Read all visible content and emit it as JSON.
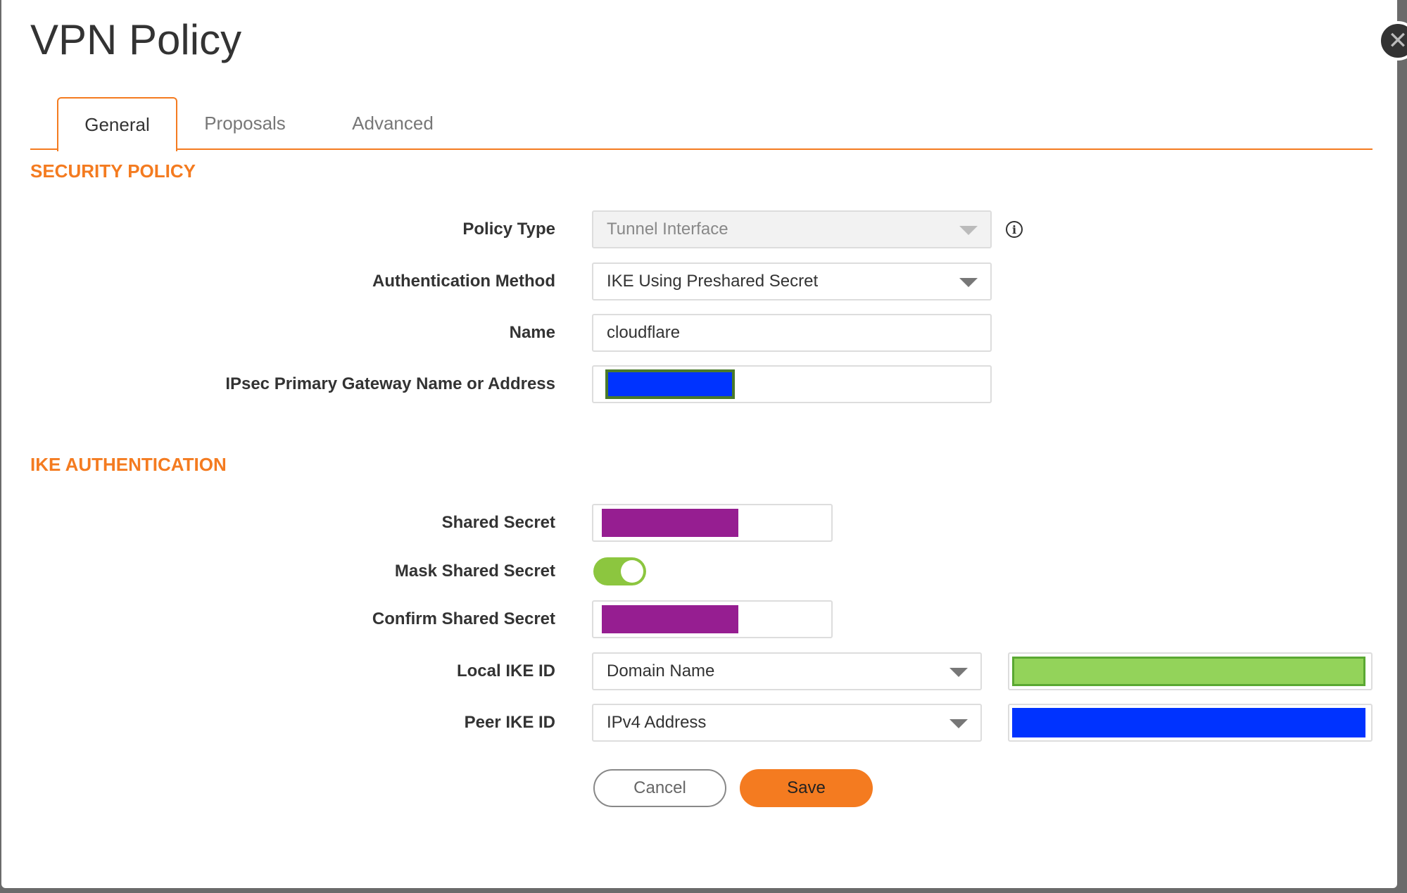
{
  "title": "VPN Policy",
  "tabs": [
    {
      "label": "General",
      "active": true
    },
    {
      "label": "Proposals"
    },
    {
      "label": "Advanced"
    }
  ],
  "security_policy": {
    "heading": "SECURITY POLICY",
    "policy_type": {
      "label": "Policy Type",
      "value": "Tunnel Interface",
      "disabled": true
    },
    "auth_method": {
      "label": "Authentication Method",
      "value": "IKE Using Preshared Secret"
    },
    "name": {
      "label": "Name",
      "value": "cloudflare"
    },
    "gateway": {
      "label": "IPsec Primary Gateway Name or Address",
      "redaction_color": "#0033ff"
    }
  },
  "ike_auth": {
    "heading": "IKE AUTHENTICATION",
    "shared_secret": {
      "label": "Shared Secret",
      "redaction_color": "#961e91"
    },
    "mask_shared_secret": {
      "label": "Mask Shared Secret",
      "on": true
    },
    "confirm_shared_secret": {
      "label": "Confirm Shared Secret",
      "redaction_color": "#961e91"
    },
    "local_ike_id": {
      "label": "Local IKE ID",
      "type": "Domain Name",
      "redaction_color": "#93d35a"
    },
    "peer_ike_id": {
      "label": "Peer IKE ID",
      "type": "IPv4 Address",
      "redaction_color": "#0033ff"
    }
  },
  "buttons": {
    "cancel": "Cancel",
    "save": "Save"
  },
  "colors": {
    "accent": "#f47b20",
    "toggle_on": "#8cc63f"
  }
}
